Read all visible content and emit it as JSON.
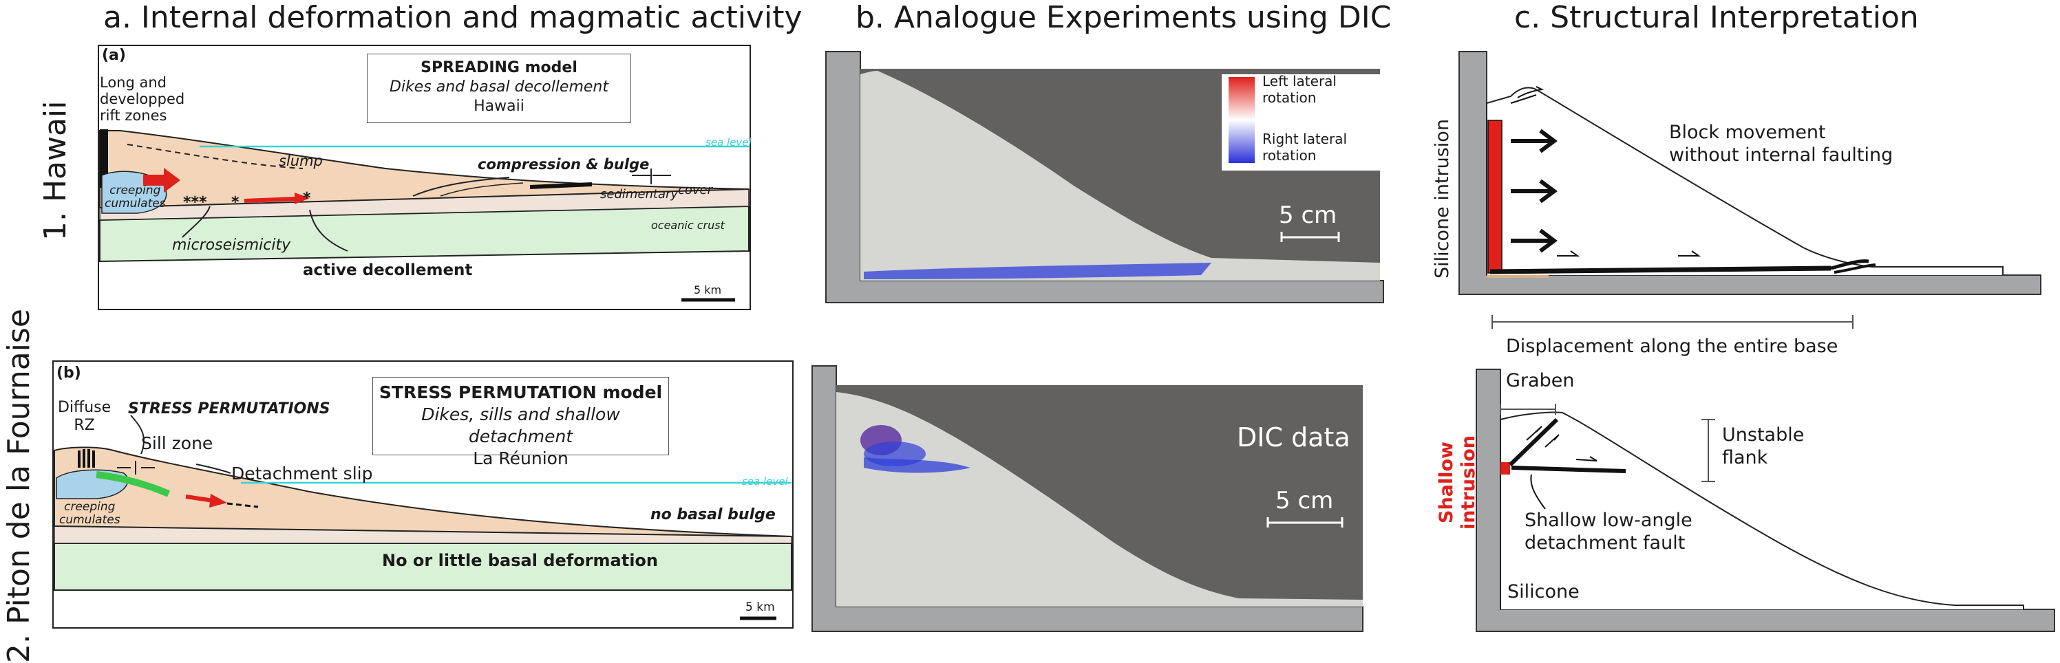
{
  "titles": {
    "a": "a. Internal deformation and magmatic activity",
    "b": "b. Analogue Experiments using DIC",
    "c": "c. Structural Interpretation"
  },
  "rows": {
    "r1": "1. Hawaii",
    "r2": "2. Piton de la Fournaise"
  },
  "panel_a1": {
    "tag": "(a)",
    "model_title": "SPREADING model",
    "model_sub": "Dikes and basal decollement",
    "model_loc": "Hawaii",
    "rift_1": "Long and",
    "rift_2": "developped",
    "rift_3": "rift zones",
    "sea": "sea level",
    "slump": "slump",
    "compression": "compression & bulge",
    "sed_cover": "sedimentary",
    "cover": "cover",
    "creeping_1": "creeping",
    "creeping_2": "cumulates",
    "stars": "***",
    "star1": "*",
    "star2": "*",
    "microseis": "microseismicity",
    "oceanic": "oceanic crust",
    "decollement": "active decollement",
    "scale": "5 km"
  },
  "panel_a2": {
    "tag": "(b)",
    "model_title": "STRESS PERMUTATION model",
    "model_sub": "Dikes, sills and shallow detachment",
    "model_loc": "La Réunion",
    "diffuse_1": "Diffuse",
    "diffuse_2": "RZ",
    "stress": "STRESS PERMUTATIONS",
    "sill": "Sill zone",
    "detach": "Detachment slip",
    "sea": "sea level",
    "creeping_1": "creeping",
    "creeping_2": "cumulates",
    "no_bulge": "no basal bulge",
    "no_deform": "No or little basal deformation",
    "scale": "5 km"
  },
  "panel_b1": {
    "legend_left_1": "Left lateral",
    "legend_left_2": "rotation",
    "legend_right_1": "Right lateral",
    "legend_right_2": "rotation",
    "scale": "5 cm"
  },
  "panel_b2": {
    "dic": "DIC data",
    "scale": "5 cm"
  },
  "panel_c1": {
    "silicone_intrusion": "Silicone intrusion",
    "block_1": "Block movement",
    "block_2": "without internal faulting",
    "displacement": "Displacement along the entire base"
  },
  "panel_c2": {
    "graben": "Graben",
    "unstable_1": "Unstable",
    "unstable_2": "flank",
    "shallow_1": "Shallow",
    "shallow_2": "intrusion",
    "fault_1": "Shallow low-angle",
    "fault_2": "detachment fault",
    "silicone": "Silicone"
  },
  "colors": {
    "edifice": "#f3d5b9",
    "crust": "#d9f1d6",
    "cumulate": "#a9d3ea",
    "sea": "#38d3d3",
    "frame": "#a4a6a8",
    "red": "#e0201b",
    "green": "#3cc94a",
    "dic_bg": "#636060",
    "sand": "#d6d6d2"
  }
}
